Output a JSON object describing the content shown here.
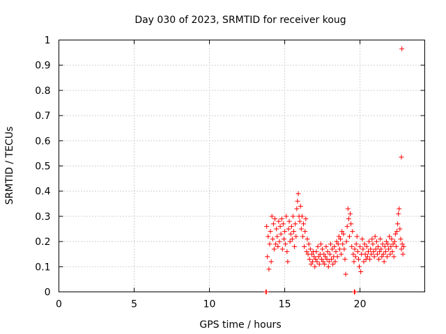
{
  "chart_data": {
    "type": "scatter",
    "title": "Day 030 of 2023, SRMTID for receiver koug",
    "xlabel": "GPS time / hours",
    "ylabel": "SRMTID / TECUs",
    "xlim": [
      0,
      24.3
    ],
    "ylim": [
      0,
      1
    ],
    "xticks": [
      0,
      5,
      10,
      15,
      20
    ],
    "xtick_labels": [
      "0",
      "5",
      "10",
      "15",
      "20"
    ],
    "yticks": [
      0,
      0.1,
      0.2,
      0.3,
      0.4,
      0.5,
      0.6,
      0.7,
      0.8,
      0.9,
      1
    ],
    "ytick_labels": [
      "0",
      "0.1",
      "0.2",
      "0.3",
      "0.4",
      "0.5",
      "0.6",
      "0.7",
      "0.8",
      "0.9",
      "1"
    ],
    "grid": true,
    "marker": "+",
    "color": "#ff0000",
    "series": [
      {
        "x": [
          13.75,
          13.78,
          19.62,
          19.66,
          13.8,
          13.85,
          13.9,
          13.95,
          14.0,
          14.05,
          14.1,
          14.15,
          14.2,
          14.25,
          14.3,
          14.35,
          14.4,
          14.45,
          14.5,
          14.55,
          14.6,
          14.65,
          14.7,
          14.75,
          14.8,
          14.85,
          14.9,
          14.95,
          15.0,
          15.05,
          15.1,
          15.15,
          15.2,
          15.25,
          15.3,
          15.35,
          15.4,
          15.45,
          15.5,
          15.55,
          15.6,
          15.65,
          15.7,
          15.75,
          15.8,
          15.85,
          15.9,
          15.95,
          16.0,
          16.05,
          16.1,
          16.15,
          16.2,
          16.25,
          16.3,
          16.35,
          16.4,
          16.45,
          16.5,
          16.55,
          16.6,
          16.65,
          16.7,
          16.75,
          16.8,
          16.85,
          16.9,
          16.95,
          17.0,
          17.05,
          17.1,
          17.15,
          17.2,
          17.25,
          17.3,
          17.35,
          17.4,
          17.45,
          17.5,
          17.55,
          17.6,
          17.65,
          17.7,
          17.75,
          17.8,
          17.85,
          17.9,
          17.95,
          18.0,
          18.05,
          18.1,
          18.15,
          18.2,
          18.25,
          18.3,
          18.35,
          18.4,
          18.45,
          18.5,
          18.55,
          18.6,
          18.65,
          18.7,
          18.75,
          18.8,
          18.85,
          18.9,
          18.95,
          19.0,
          19.05,
          19.1,
          19.15,
          19.2,
          19.25,
          19.3,
          19.35,
          19.4,
          19.45,
          19.5,
          19.55,
          19.6,
          19.65,
          19.7,
          19.75,
          19.8,
          19.85,
          19.9,
          19.95,
          20.0,
          20.05,
          20.1,
          20.15,
          20.2,
          20.25,
          20.3,
          20.35,
          20.4,
          20.45,
          20.5,
          20.55,
          20.6,
          20.65,
          20.7,
          20.75,
          20.8,
          20.85,
          20.9,
          20.95,
          21.0,
          21.05,
          21.1,
          21.15,
          21.2,
          21.25,
          21.3,
          21.35,
          21.4,
          21.45,
          21.5,
          21.55,
          21.6,
          21.65,
          21.7,
          21.75,
          21.8,
          21.85,
          21.9,
          21.95,
          22.0,
          22.05,
          22.1,
          22.15,
          22.2,
          22.25,
          22.3,
          22.35,
          22.4,
          22.45,
          22.5,
          22.55,
          22.6,
          22.65,
          22.7,
          22.75,
          22.8,
          22.85,
          22.9,
          22.75,
          22.78
        ],
        "y": [
          0.0,
          0.0,
          0.0,
          0.0,
          0.26,
          0.14,
          0.22,
          0.09,
          0.19,
          0.24,
          0.12,
          0.3,
          0.21,
          0.27,
          0.17,
          0.29,
          0.19,
          0.25,
          0.22,
          0.18,
          0.28,
          0.2,
          0.26,
          0.23,
          0.29,
          0.17,
          0.27,
          0.21,
          0.24,
          0.19,
          0.3,
          0.16,
          0.12,
          0.25,
          0.28,
          0.2,
          0.23,
          0.26,
          0.21,
          0.3,
          0.24,
          0.18,
          0.27,
          0.22,
          0.33,
          0.36,
          0.39,
          0.3,
          0.28,
          0.34,
          0.25,
          0.3,
          0.22,
          0.27,
          0.18,
          0.24,
          0.29,
          0.16,
          0.21,
          0.15,
          0.19,
          0.13,
          0.17,
          0.11,
          0.15,
          0.12,
          0.16,
          0.14,
          0.1,
          0.13,
          0.16,
          0.12,
          0.18,
          0.14,
          0.11,
          0.15,
          0.19,
          0.13,
          0.17,
          0.12,
          0.15,
          0.11,
          0.14,
          0.18,
          0.13,
          0.16,
          0.1,
          0.12,
          0.15,
          0.19,
          0.13,
          0.17,
          0.11,
          0.14,
          0.18,
          0.12,
          0.16,
          0.2,
          0.14,
          0.19,
          0.22,
          0.17,
          0.21,
          0.15,
          0.24,
          0.19,
          0.23,
          0.17,
          0.13,
          0.07,
          0.2,
          0.26,
          0.33,
          0.29,
          0.22,
          0.31,
          0.27,
          0.18,
          0.24,
          0.15,
          0.12,
          0.17,
          0.14,
          0.19,
          0.22,
          0.16,
          0.13,
          0.1,
          0.18,
          0.08,
          0.15,
          0.21,
          0.17,
          0.12,
          0.19,
          0.15,
          0.13,
          0.18,
          0.14,
          0.16,
          0.2,
          0.13,
          0.17,
          0.15,
          0.21,
          0.19,
          0.16,
          0.14,
          0.22,
          0.17,
          0.2,
          0.15,
          0.18,
          0.13,
          0.16,
          0.21,
          0.17,
          0.14,
          0.19,
          0.15,
          0.12,
          0.18,
          0.16,
          0.2,
          0.14,
          0.19,
          0.17,
          0.22,
          0.15,
          0.18,
          0.21,
          0.16,
          0.19,
          0.14,
          0.2,
          0.23,
          0.18,
          0.24,
          0.27,
          0.31,
          0.33,
          0.25,
          0.21,
          0.17,
          0.19,
          0.15,
          0.18,
          0.535,
          0.965
        ]
      }
    ]
  }
}
